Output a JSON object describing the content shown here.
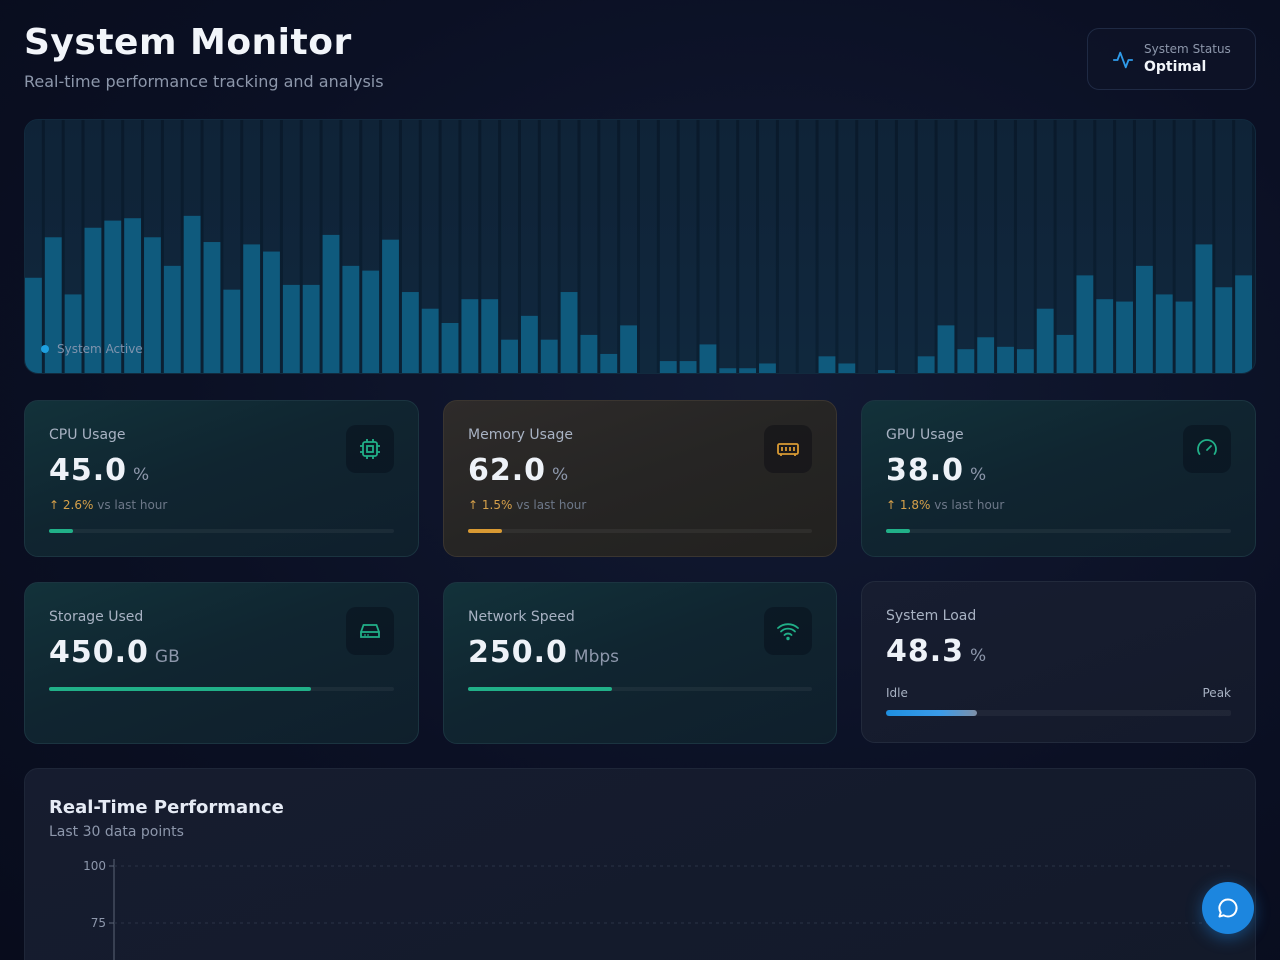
{
  "header": {
    "title": "System Monitor",
    "subtitle": "Real-time performance tracking and analysis"
  },
  "status": {
    "label": "System Status",
    "value": "Optimal",
    "icon": "activity-icon"
  },
  "hero": {
    "badge": "System Active",
    "levels": [
      0.4,
      0.57,
      0.33,
      0.61,
      0.64,
      0.65,
      0.57,
      0.45,
      0.66,
      0.55,
      0.35,
      0.54,
      0.51,
      0.37,
      0.37,
      0.58,
      0.45,
      0.43,
      0.56,
      0.34,
      0.27,
      0.21,
      0.31,
      0.31,
      0.14,
      0.24,
      0.14,
      0.34,
      0.16,
      0.08,
      0.2,
      0.0,
      0.05,
      0.05,
      0.12,
      0.02,
      0.02,
      0.04,
      0.0,
      0.0,
      0.07,
      0.04,
      0.0,
      0.01,
      0.0,
      0.07,
      0.2,
      0.1,
      0.15,
      0.11,
      0.1,
      0.27,
      0.16,
      0.41,
      0.31,
      0.3,
      0.45,
      0.33,
      0.3,
      0.54,
      0.36,
      0.41
    ],
    "bar_color": "#0f5a7d"
  },
  "metrics": [
    {
      "label": "CPU Usage",
      "value": "45.0",
      "unit": "%",
      "trend_arrow": "↑",
      "trend_value": "2.6%",
      "trend_text": "vs last hour",
      "level": 0.07,
      "icon": "cpu-icon",
      "accent": "#21b088"
    },
    {
      "label": "Memory Usage",
      "value": "62.0",
      "unit": "%",
      "trend_arrow": "↑",
      "trend_value": "1.5%",
      "trend_text": "vs last hour",
      "level": 0.1,
      "icon": "memory-icon",
      "accent": "#d99a33"
    },
    {
      "label": "GPU Usage",
      "value": "38.0",
      "unit": "%",
      "trend_arrow": "↑",
      "trend_value": "1.8%",
      "trend_text": "vs last hour",
      "level": 0.07,
      "icon": "gauge-icon",
      "accent": "#21b088"
    },
    {
      "label": "Storage Used",
      "value": "450.0",
      "unit": "GB",
      "level": 0.76,
      "icon": "hard-drive-icon",
      "accent": "#21b088"
    },
    {
      "label": "Network Speed",
      "value": "250.0",
      "unit": "Mbps",
      "level": 0.42,
      "icon": "wifi-icon",
      "accent": "#21b088"
    },
    {
      "label": "System Load",
      "value": "48.3",
      "unit": "%",
      "low_label": "Idle",
      "high_label": "Peak",
      "level": 0.263
    }
  ],
  "performance": {
    "title": "Real-Time Performance",
    "subtitle": "Last 30 data points",
    "y_ticks": [
      "100",
      "75"
    ]
  },
  "chat": {
    "icon": "chat-bubble-icon"
  }
}
